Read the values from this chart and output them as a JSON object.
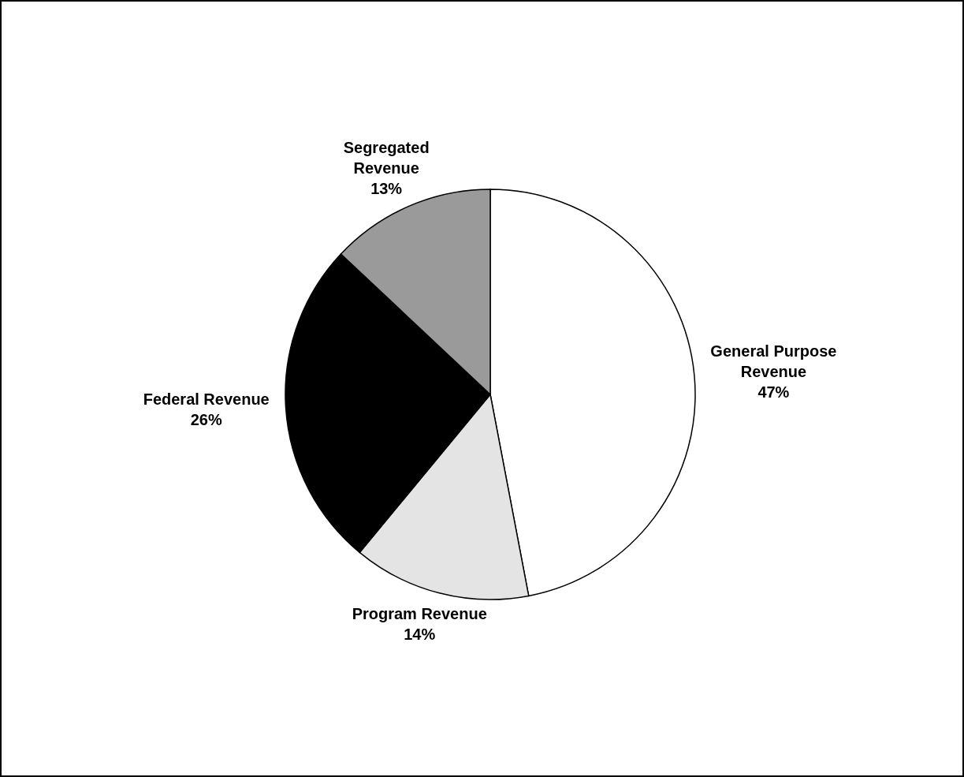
{
  "chart_data": {
    "type": "pie",
    "categories": [
      "General Purpose Revenue",
      "Program Revenue",
      "Federal Revenue",
      "Segregated Revenue"
    ],
    "values": [
      47,
      14,
      26,
      13
    ],
    "value_labels": [
      "47%",
      "14%",
      "26%",
      "13%"
    ],
    "colors": [
      "#ffffff",
      "#e4e4e4",
      "#000000",
      "#9a9a9a"
    ],
    "legend": false
  }
}
